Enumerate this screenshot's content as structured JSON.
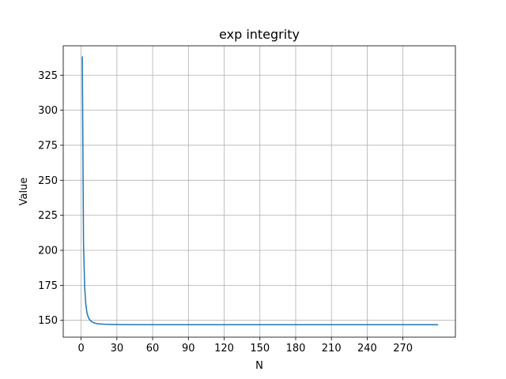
{
  "chart_data": {
    "type": "line",
    "title": "exp integrity",
    "xlabel": "N",
    "ylabel": "Value",
    "xlim": [
      -15.0,
      314.0
    ],
    "ylim": [
      138.0,
      346.0
    ],
    "xticks": [
      0,
      30,
      60,
      90,
      120,
      150,
      180,
      210,
      240,
      270
    ],
    "yticks": [
      150,
      175,
      200,
      225,
      250,
      275,
      300,
      325
    ],
    "grid": true,
    "legend": "none",
    "series": [
      {
        "color": "#1f77b4",
        "x": [
          1,
          2,
          3,
          4,
          5,
          6,
          7,
          8,
          9,
          10,
          12,
          14,
          16,
          18,
          20,
          25,
          30,
          40,
          50,
          60,
          80,
          100,
          150,
          200,
          250,
          299
        ],
        "values": [
          338,
          205,
          173,
          161,
          155,
          152.3,
          150.7,
          149.7,
          149.0,
          148.5,
          147.9,
          147.6,
          147.4,
          147.3,
          147.2,
          147.1,
          147.0,
          146.95,
          146.92,
          146.9,
          146.9,
          146.9,
          146.9,
          146.9,
          146.9,
          146.9
        ]
      }
    ]
  }
}
